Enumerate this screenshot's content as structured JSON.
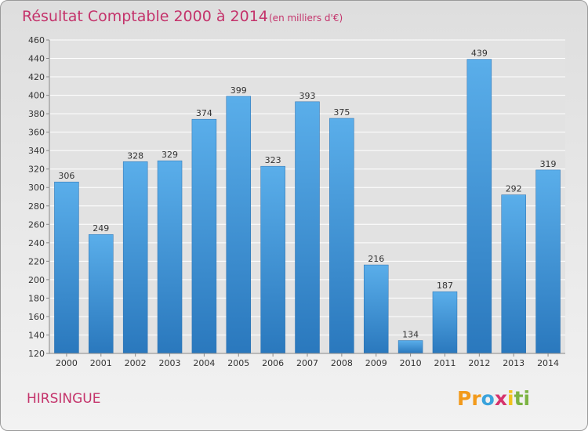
{
  "chart_data": {
    "type": "bar",
    "title": "Résultat Comptable 2000 à 2014",
    "subtitle": "(en milliers d'€)",
    "categories": [
      "2000",
      "2001",
      "2002",
      "2003",
      "2004",
      "2005",
      "2006",
      "2007",
      "2008",
      "2009",
      "2010",
      "2011",
      "2012",
      "2013",
      "2014"
    ],
    "values": [
      306,
      249,
      328,
      329,
      374,
      399,
      323,
      393,
      375,
      216,
      134,
      187,
      439,
      292,
      319
    ],
    "y_ticks": [
      120,
      140,
      160,
      180,
      200,
      220,
      240,
      260,
      280,
      300,
      320,
      340,
      360,
      380,
      400,
      420,
      440,
      460
    ],
    "ylim": [
      120,
      460
    ],
    "xlabel": "",
    "ylabel": "",
    "grid": true,
    "bar_color": "#3a8fd4"
  },
  "commune": "HIRSINGUE",
  "logo": {
    "letters": [
      "P",
      "r",
      "o",
      "x",
      "i",
      "t",
      "i"
    ],
    "colors": [
      "#f29a1c",
      "#f29a1c",
      "#3aa3dc",
      "#d6336c",
      "#f2c21c",
      "#7cb342",
      "#7cb342"
    ]
  }
}
